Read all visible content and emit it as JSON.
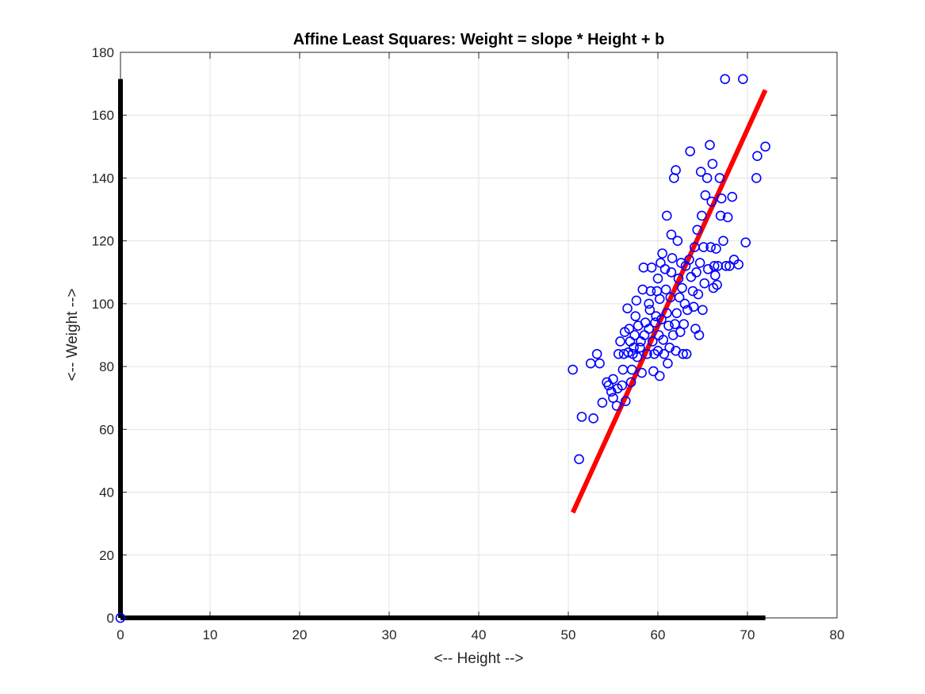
{
  "chart_data": {
    "type": "scatter",
    "title": "Affine Least Squares: Weight = slope * Height + b",
    "xlabel": "<-- Height -->",
    "ylabel": "<-- Weight -->",
    "xlim": [
      0,
      80
    ],
    "ylim": [
      0,
      180
    ],
    "xticks": [
      0,
      10,
      20,
      30,
      40,
      50,
      60,
      70,
      80
    ],
    "yticks": [
      0,
      20,
      40,
      60,
      80,
      100,
      120,
      140,
      160,
      180
    ],
    "xtick_labels": [
      "0",
      "10",
      "20",
      "30",
      "40",
      "50",
      "60",
      "70",
      "80"
    ],
    "ytick_labels": [
      "0",
      "20",
      "40",
      "60",
      "80",
      "100",
      "120",
      "140",
      "160",
      "180"
    ],
    "grid": true,
    "series": [
      {
        "type": "scatter",
        "marker": "circle-open",
        "color": "#0000ff",
        "points": [
          [
            0,
            0
          ],
          [
            50.5,
            79
          ],
          [
            51.2,
            50.5
          ],
          [
            51.5,
            64
          ],
          [
            52.5,
            81
          ],
          [
            52.8,
            63.5
          ],
          [
            53.2,
            84
          ],
          [
            53.5,
            81
          ],
          [
            53.8,
            68.5
          ],
          [
            54.3,
            75
          ],
          [
            54.5,
            74
          ],
          [
            54.8,
            72
          ],
          [
            55,
            70
          ],
          [
            55,
            76
          ],
          [
            55.4,
            67.5
          ],
          [
            55.5,
            73
          ],
          [
            55.6,
            84
          ],
          [
            55.8,
            88
          ],
          [
            56,
            74
          ],
          [
            56.1,
            79
          ],
          [
            56.2,
            84
          ],
          [
            56.3,
            91
          ],
          [
            56.4,
            69
          ],
          [
            56.6,
            98.5
          ],
          [
            56.7,
            84.5
          ],
          [
            56.8,
            92
          ],
          [
            56.9,
            88
          ],
          [
            57,
            75
          ],
          [
            57.1,
            79
          ],
          [
            57.2,
            84
          ],
          [
            57.3,
            86
          ],
          [
            57.4,
            90
          ],
          [
            57.5,
            96
          ],
          [
            57.6,
            101
          ],
          [
            57.7,
            83
          ],
          [
            57.8,
            93
          ],
          [
            58,
            86
          ],
          [
            58.1,
            88
          ],
          [
            58.2,
            78
          ],
          [
            58.3,
            104.5
          ],
          [
            58.4,
            111.5
          ],
          [
            58.5,
            90
          ],
          [
            58.6,
            94
          ],
          [
            58.8,
            84
          ],
          [
            59,
            100
          ],
          [
            59,
            92
          ],
          [
            59.1,
            98
          ],
          [
            59.2,
            104
          ],
          [
            59.3,
            111.5
          ],
          [
            59.4,
            88
          ],
          [
            59.5,
            78.5
          ],
          [
            59.6,
            84
          ],
          [
            59.7,
            94
          ],
          [
            59.8,
            96
          ],
          [
            59.9,
            104
          ],
          [
            60,
            108
          ],
          [
            60,
            85
          ],
          [
            60.1,
            90
          ],
          [
            60.2,
            101.5
          ],
          [
            60.2,
            77
          ],
          [
            60.3,
            113
          ],
          [
            60.4,
            95
          ],
          [
            60.5,
            116
          ],
          [
            60.6,
            88.5
          ],
          [
            60.7,
            84
          ],
          [
            60.8,
            111
          ],
          [
            60.9,
            104.5
          ],
          [
            61,
            128
          ],
          [
            61,
            97
          ],
          [
            61.1,
            81
          ],
          [
            61.2,
            93
          ],
          [
            61.3,
            86
          ],
          [
            61.4,
            102
          ],
          [
            61.5,
            110
          ],
          [
            61.5,
            122
          ],
          [
            61.6,
            114.5
          ],
          [
            61.7,
            90
          ],
          [
            61.8,
            140
          ],
          [
            61.9,
            93.5
          ],
          [
            62,
            142.5
          ],
          [
            62,
            85
          ],
          [
            62.1,
            97
          ],
          [
            62.2,
            120
          ],
          [
            62.3,
            108
          ],
          [
            62.4,
            102
          ],
          [
            62.5,
            91
          ],
          [
            62.6,
            113
          ],
          [
            62.7,
            105
          ],
          [
            62.8,
            84
          ],
          [
            62.9,
            93.5
          ],
          [
            63,
            100
          ],
          [
            63.1,
            112
          ],
          [
            63.2,
            84
          ],
          [
            63.3,
            98
          ],
          [
            63.5,
            114
          ],
          [
            63.6,
            148.5
          ],
          [
            63.7,
            108.5
          ],
          [
            63.9,
            104
          ],
          [
            64,
            99
          ],
          [
            64.1,
            118
          ],
          [
            64.2,
            92
          ],
          [
            64.3,
            110
          ],
          [
            64.4,
            123.5
          ],
          [
            64.5,
            103
          ],
          [
            64.6,
            90
          ],
          [
            64.7,
            113
          ],
          [
            64.8,
            142
          ],
          [
            64.9,
            128
          ],
          [
            65,
            98
          ],
          [
            65.1,
            118
          ],
          [
            65.2,
            106.5
          ],
          [
            65.3,
            134.5
          ],
          [
            65.5,
            140
          ],
          [
            65.6,
            111
          ],
          [
            65.8,
            150.5
          ],
          [
            65.9,
            118
          ],
          [
            66,
            132.5
          ],
          [
            66.1,
            144.5
          ],
          [
            66.2,
            105
          ],
          [
            66.3,
            112
          ],
          [
            66.4,
            109
          ],
          [
            66.5,
            117.5
          ],
          [
            66.6,
            106
          ],
          [
            66.7,
            112
          ],
          [
            66.9,
            140
          ],
          [
            67,
            128
          ],
          [
            67.1,
            133.5
          ],
          [
            67.3,
            120
          ],
          [
            67.5,
            171.5
          ],
          [
            67.6,
            112
          ],
          [
            67.8,
            127.5
          ],
          [
            68,
            112
          ],
          [
            68.3,
            134
          ],
          [
            68.5,
            114
          ],
          [
            69,
            112.5
          ],
          [
            69.5,
            171.5
          ],
          [
            69.8,
            119.5
          ],
          [
            71,
            140
          ],
          [
            71.1,
            147
          ],
          [
            72,
            150
          ]
        ]
      },
      {
        "type": "line",
        "color": "#ff0000",
        "points": [
          [
            50.5,
            33.5
          ],
          [
            72,
            168
          ]
        ]
      },
      {
        "type": "line",
        "color": "#000000",
        "points": [
          [
            0,
            171.5
          ],
          [
            0,
            0
          ]
        ]
      },
      {
        "type": "line",
        "color": "#000000",
        "points": [
          [
            0,
            0
          ],
          [
            72,
            0
          ]
        ]
      }
    ]
  }
}
